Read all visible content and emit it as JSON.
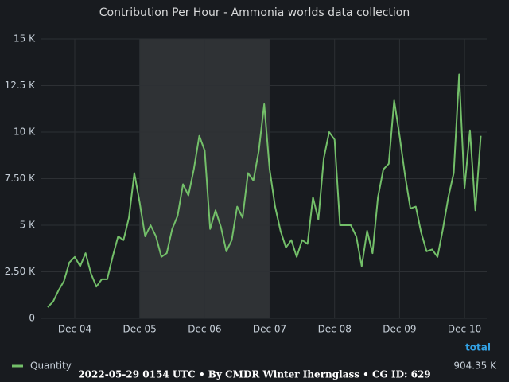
{
  "chart_data": {
    "type": "line",
    "title": "Contribution Per Hour - Ammonia worlds data collection",
    "x": [
      -10,
      -8,
      -6,
      -4,
      -2,
      0,
      2,
      4,
      6,
      8,
      10,
      12,
      14,
      16,
      18,
      20,
      22,
      24,
      26,
      28,
      30,
      32,
      34,
      36,
      38,
      40,
      42,
      44,
      46,
      48,
      50,
      52,
      54,
      56,
      58,
      60,
      62,
      64,
      66,
      68,
      70,
      72,
      74,
      76,
      78,
      80,
      82,
      84,
      86,
      88,
      90,
      92,
      94,
      96,
      98,
      100,
      102,
      104,
      106,
      108,
      110,
      112,
      114,
      116,
      118,
      120,
      122,
      124,
      126,
      128,
      130,
      132,
      134,
      136,
      138,
      140,
      142,
      144,
      146,
      148,
      150
    ],
    "series": [
      {
        "name": "Quantity",
        "color": "#73bf69",
        "values": [
          600,
          900,
          1500,
          2000,
          3000,
          3300,
          2800,
          3500,
          2400,
          1700,
          2100,
          2100,
          3300,
          4400,
          4200,
          5400,
          7800,
          6200,
          4400,
          5000,
          4400,
          3300,
          3500,
          4800,
          5500,
          7200,
          6600,
          8000,
          9800,
          9000,
          4800,
          5800,
          4900,
          3600,
          4200,
          6000,
          5400,
          7800,
          7400,
          9000,
          11500,
          8000,
          6000,
          4700,
          3800,
          4200,
          3300,
          4200,
          4000,
          6500,
          5300,
          8600,
          10000,
          9600,
          5000,
          5000,
          5000,
          4400,
          2800,
          4700,
          3500,
          6500,
          8000,
          8300,
          11700,
          9800,
          7700,
          5900,
          6000,
          4600,
          3600,
          3700,
          3300,
          4800,
          6500,
          7800,
          13100,
          7000,
          10100,
          5800,
          9800
        ],
        "total": {
          "value": 904350,
          "label": "904.35 K"
        }
      }
    ],
    "legend_stat": "total",
    "xlim": [
      -12.34,
      152.2
    ],
    "xticks": [
      {
        "value": 0,
        "label": "Dec 04"
      },
      {
        "value": 24,
        "label": "Dec 05"
      },
      {
        "value": 48,
        "label": "Dec 06"
      },
      {
        "value": 72,
        "label": "Dec 07"
      },
      {
        "value": 96,
        "label": "Dec 08"
      },
      {
        "value": 120,
        "label": "Dec 09"
      },
      {
        "value": 144,
        "label": "Dec 10"
      }
    ],
    "ylim": [
      0,
      15000
    ],
    "yticks": [
      0,
      {
        "value": 2500,
        "label": "2.50 K"
      },
      {
        "value": 5000,
        "label": "5 K"
      },
      {
        "value": 7500,
        "label": "7.50 K"
      },
      {
        "value": 10000,
        "label": "10 K"
      },
      {
        "value": 12500,
        "label": "12.5 K"
      },
      {
        "value": 15000,
        "label": "15 K"
      }
    ],
    "highlight": [
      24,
      72
    ],
    "grid": true,
    "footer": "2022-05-29 0154 UTC • By CMDR Winter Iherng­lass • CG ID: 629"
  }
}
